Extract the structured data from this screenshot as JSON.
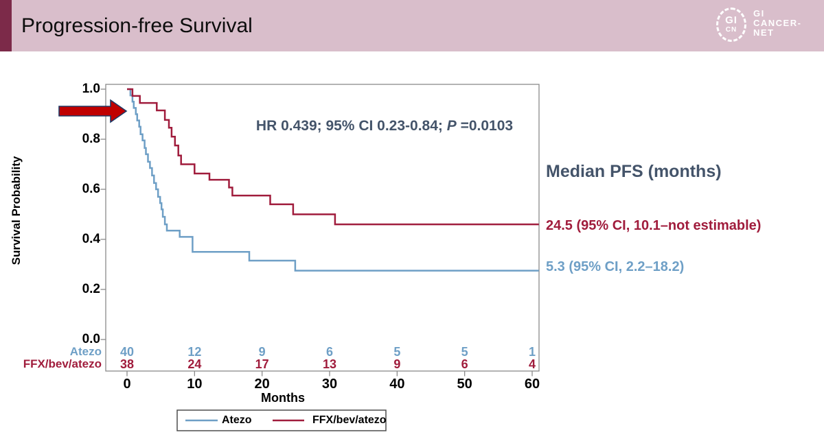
{
  "header": {
    "title": "Progression-free Survival",
    "logo": {
      "circle_top": "GI",
      "circle_bottom": "CN",
      "line1": "GI",
      "line2": "CANCER-",
      "line3": "NET"
    }
  },
  "annotation": {
    "hr_text": "HR 0.439; 95% CI 0.23-0.84;",
    "p_label": "P",
    "p_value": "=0.0103"
  },
  "right_panel": {
    "title": "Median PFS (months)",
    "ffx_median": "24.5 (95% CI, 10.1–not estimable)",
    "atezo_median": "5.3 (95% CI, 2.2–18.2)"
  },
  "colors": {
    "header_bg": "#d9becb",
    "header_accent": "#7c2a49",
    "slate_text": "#44546a",
    "arrow_fill": "#c00000",
    "arrow_stroke": "#1f3864",
    "axis_gray": "#8a8a8a",
    "atezo_blue": "#6e9fc6",
    "ffx_red": "#a01c3c"
  },
  "chart_data": {
    "type": "line",
    "subtype": "kaplan-meier-step",
    "title": "",
    "xlabel": "Months",
    "ylabel": "Survival Probability",
    "xlim": [
      0,
      60
    ],
    "ylim": [
      0.0,
      1.0
    ],
    "x_ticks": [
      0,
      10,
      20,
      30,
      40,
      50,
      60
    ],
    "y_ticks": [
      "1.0",
      "0.8",
      "0.6",
      "0.4",
      "0.2",
      "0.0"
    ],
    "grid": false,
    "legend_position": "bottom",
    "series": [
      {
        "name": "Atezo",
        "color": "#6e9fc6",
        "median_months": 5.3,
        "points": [
          [
            0,
            1.0
          ],
          [
            0.5,
            0.975
          ],
          [
            0.8,
            0.95
          ],
          [
            1.0,
            0.925
          ],
          [
            1.3,
            0.9
          ],
          [
            1.5,
            0.875
          ],
          [
            1.8,
            0.85
          ],
          [
            2.0,
            0.82
          ],
          [
            2.3,
            0.795
          ],
          [
            2.6,
            0.765
          ],
          [
            2.8,
            0.74
          ],
          [
            3.1,
            0.71
          ],
          [
            3.4,
            0.685
          ],
          [
            3.7,
            0.655
          ],
          [
            4.0,
            0.625
          ],
          [
            4.3,
            0.6
          ],
          [
            4.6,
            0.57
          ],
          [
            4.9,
            0.545
          ],
          [
            5.1,
            0.52
          ],
          [
            5.3,
            0.49
          ],
          [
            5.6,
            0.46
          ],
          [
            5.9,
            0.435
          ],
          [
            7.8,
            0.41
          ],
          [
            9.7,
            0.35
          ],
          [
            18.1,
            0.315
          ],
          [
            24.9,
            0.275
          ],
          [
            61,
            0.275
          ]
        ]
      },
      {
        "name": "FFX/bev/atezo",
        "color": "#a01c3c",
        "median_months": 24.5,
        "points": [
          [
            0,
            1.0
          ],
          [
            0.8,
            0.973
          ],
          [
            1.9,
            0.945
          ],
          [
            4.4,
            0.915
          ],
          [
            5.6,
            0.877
          ],
          [
            6.2,
            0.846
          ],
          [
            6.6,
            0.81
          ],
          [
            7.1,
            0.775
          ],
          [
            7.6,
            0.735
          ],
          [
            8.0,
            0.7
          ],
          [
            10.0,
            0.663
          ],
          [
            12.2,
            0.638
          ],
          [
            15.1,
            0.607
          ],
          [
            15.6,
            0.575
          ],
          [
            21.2,
            0.54
          ],
          [
            24.6,
            0.5
          ],
          [
            30.8,
            0.46
          ],
          [
            61,
            0.46
          ]
        ]
      }
    ],
    "at_risk": {
      "rows": [
        {
          "label": "Atezo",
          "color": "#6e9fc6",
          "values": [
            40,
            12,
            9,
            6,
            5,
            5,
            1
          ]
        },
        {
          "label": "FFX/bev/atezo",
          "color": "#a01c3c",
          "values": [
            38,
            24,
            17,
            13,
            9,
            6,
            4
          ]
        }
      ]
    },
    "legend": {
      "entries": [
        {
          "label": "Atezo",
          "color": "#6e9fc6"
        },
        {
          "label": "FFX/bev/atezo",
          "color": "#a01c3c"
        }
      ]
    }
  }
}
